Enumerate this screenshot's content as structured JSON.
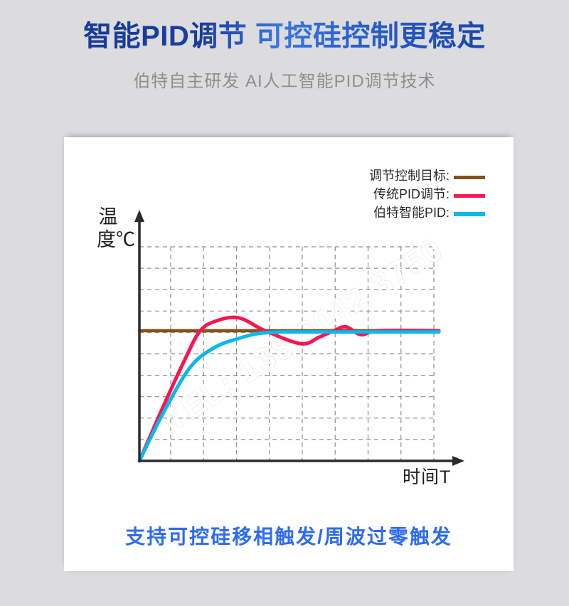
{
  "page": {
    "background_color": "#dcdcde",
    "card_color": "#ffffff"
  },
  "header": {
    "title": "智能PID调节 可控硅控制更稳定",
    "subtitle": "伯特自主研发 AI人工智能PID调节技术",
    "title_color_dark": "#1a3e9e",
    "title_color_light": "#3b76e4",
    "subtitle_color": "#8f8f8f"
  },
  "watermark": "TEL: 138 6042 3750",
  "chart_data": {
    "type": "line",
    "title": "",
    "xlabel": "时间T",
    "ylabel": "温度℃",
    "x_axis_note": "unlabeled conceptual time axis, 0-100 relative units, arrow at right end",
    "y_axis_note": "unlabeled conceptual temperature axis, setpoint = 100 relative units, arrow at top",
    "grid": true,
    "grid_style": "dashed",
    "legend_position": "top-right",
    "legend": [
      {
        "label": "调节控制目标:",
        "color": "#82521c",
        "thickness": 5
      },
      {
        "label": "传统PID调节:",
        "color": "#f91552",
        "thickness": 5
      },
      {
        "label": "伯特智能PID:",
        "color": "#0ab8ea",
        "thickness": 6
      }
    ],
    "series": [
      {
        "name": "调节控制目标",
        "color": "#82521c",
        "style": "constant setpoint line",
        "x": [
          0,
          100
        ],
        "y": [
          100,
          100
        ]
      },
      {
        "name": "传统PID调节",
        "color": "#f91552",
        "style": "overshoot then damped oscillation",
        "x": [
          0,
          8,
          15,
          20,
          25,
          33,
          42,
          54,
          60,
          65,
          69,
          74,
          80,
          100
        ],
        "y": [
          0,
          42,
          77,
          99,
          107,
          110,
          100,
          90,
          95,
          100,
          103,
          97,
          100,
          100
        ]
      },
      {
        "name": "伯特智能PID",
        "color": "#0ab8ea",
        "style": "smooth approach without overshoot",
        "x": [
          0,
          8,
          17,
          25,
          33,
          40,
          48,
          60,
          100
        ],
        "y": [
          0,
          37,
          72,
          87,
          94,
          98,
          99,
          99,
          99
        ]
      }
    ]
  },
  "footer": {
    "text": "支持可控硅移相触发/周波过零触发",
    "color": "#2e6bf0"
  },
  "style": {
    "axis_color": "#2b2b2b",
    "grid_color": "#8e8e8e",
    "watermark_fill": "#ffffff"
  }
}
